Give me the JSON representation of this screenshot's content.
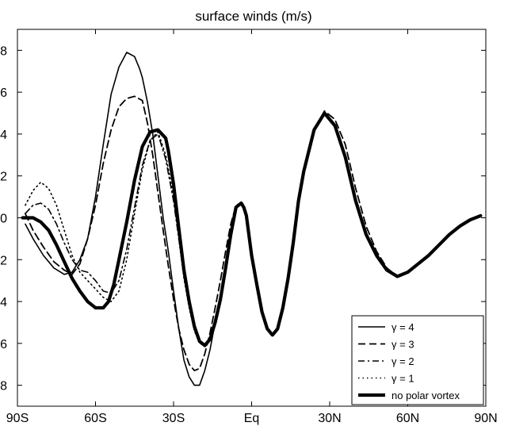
{
  "chart_data": {
    "type": "line",
    "title": "surface winds (m/s)",
    "xlabel": "",
    "ylabel": "",
    "xlim": [
      -90,
      90
    ],
    "ylim": [
      -9,
      9
    ],
    "x_ticks": [
      -90,
      -60,
      -30,
      0,
      30,
      60,
      90
    ],
    "x_tick_labels": [
      "90S",
      "60S",
      "30S",
      "Eq",
      "30N",
      "60N",
      "90N"
    ],
    "y_ticks": [
      8,
      6,
      4,
      2,
      0,
      -2,
      -4,
      -6,
      -8
    ],
    "y_tick_labels": [
      "8",
      "6",
      "4",
      "2",
      "0",
      "2",
      "4",
      "6",
      "8"
    ],
    "grid": false,
    "legend_position": "bottom-right",
    "series": [
      {
        "name": "γ = 4",
        "style": "solid-thin",
        "x": [
          -87,
          -84,
          -80,
          -76,
          -72,
          -69,
          -66,
          -63,
          -60,
          -57,
          -54,
          -51,
          -48,
          -45,
          -43,
          -42,
          -40,
          -38,
          -36,
          -34,
          -32,
          -30,
          -28,
          -26,
          -24,
          -22,
          -20,
          -18,
          -16,
          -14,
          -12,
          -10,
          -8,
          -6,
          -4,
          -3,
          -2,
          0,
          2,
          4,
          6,
          8,
          10,
          12,
          14,
          16,
          18,
          20,
          24,
          28,
          32,
          36,
          40,
          44,
          48,
          52,
          56,
          60,
          64,
          68,
          72,
          76,
          80,
          84,
          88
        ],
        "y": [
          -0.3,
          -1.0,
          -1.8,
          -2.4,
          -2.7,
          -2.6,
          -2.0,
          -1.0,
          1.0,
          3.5,
          5.9,
          7.2,
          7.9,
          7.7,
          7.1,
          6.7,
          5.5,
          4.0,
          2.0,
          0.0,
          -1.6,
          -3.5,
          -5.3,
          -6.8,
          -7.6,
          -8.0,
          -8.0,
          -7.3,
          -6.3,
          -5.0,
          -3.7,
          -2.2,
          -0.7,
          0.5,
          0.7,
          0.5,
          0.1,
          -1.8,
          -3.2,
          -4.5,
          -5.3,
          -5.6,
          -5.3,
          -4.3,
          -2.9,
          -1.2,
          0.8,
          2.2,
          4.2,
          5.0,
          4.4,
          2.9,
          0.8,
          -0.8,
          -1.8,
          -2.5,
          -2.8,
          -2.6,
          -2.2,
          -1.8,
          -1.3,
          -0.8,
          -0.4,
          -0.1,
          0.1
        ]
      },
      {
        "name": "γ = 3",
        "style": "dashed",
        "x": [
          -87,
          -84,
          -80,
          -76,
          -72,
          -69,
          -66,
          -63,
          -60,
          -57,
          -54,
          -51,
          -48,
          -45,
          -42,
          -40,
          -38,
          -36,
          -34,
          -32,
          -30,
          -28,
          -26,
          -24,
          -22,
          -20,
          -18,
          -16,
          -14,
          -12,
          -10,
          -8,
          -6,
          -4,
          -3,
          -2,
          0,
          2,
          4,
          6,
          8,
          10,
          12,
          14,
          16,
          18,
          20,
          24,
          28,
          32,
          36,
          40,
          44,
          48,
          52,
          56,
          60,
          64,
          68,
          72,
          76,
          80,
          84,
          88
        ],
        "y": [
          0.2,
          -0.6,
          -1.4,
          -2.1,
          -2.5,
          -2.7,
          -2.2,
          -1.0,
          0.6,
          2.6,
          4.2,
          5.3,
          5.7,
          5.8,
          5.6,
          4.5,
          3.0,
          1.2,
          -0.6,
          -2.3,
          -3.9,
          -5.3,
          -6.3,
          -7.0,
          -7.3,
          -7.2,
          -6.5,
          -5.5,
          -4.3,
          -3.0,
          -1.6,
          -0.3,
          0.6,
          0.7,
          0.5,
          0.1,
          -1.8,
          -3.2,
          -4.5,
          -5.3,
          -5.6,
          -5.3,
          -4.3,
          -2.9,
          -1.2,
          0.8,
          2.2,
          4.2,
          5.1,
          4.7,
          3.5,
          1.4,
          -0.4,
          -1.6,
          -2.4,
          -2.8,
          -2.6,
          -2.2,
          -1.8,
          -1.3,
          -0.8,
          -0.4,
          -0.1,
          0.1
        ]
      },
      {
        "name": "γ = 2",
        "style": "dash-dot",
        "x": [
          -87,
          -84,
          -81,
          -78,
          -75,
          -72,
          -69,
          -66,
          -63,
          -60,
          -57,
          -54,
          -51,
          -48,
          -45,
          -42,
          -39,
          -36,
          -33,
          -30,
          -28,
          -26,
          -24,
          -22,
          -20,
          -18,
          -16,
          -14,
          -12,
          -10,
          -8,
          -6,
          -4,
          -3,
          -2,
          0,
          2,
          4,
          6,
          8,
          10,
          12,
          14,
          16,
          18,
          20,
          24,
          28,
          32,
          36,
          40,
          44,
          48,
          52,
          56,
          60,
          64,
          68,
          72,
          76,
          80,
          84,
          88
        ],
        "y": [
          0.2,
          0.6,
          0.7,
          0.4,
          -0.3,
          -1.2,
          -2.0,
          -2.5,
          -2.6,
          -3.0,
          -3.5,
          -3.6,
          -3.0,
          -1.5,
          0.5,
          2.5,
          3.7,
          4.0,
          2.8,
          0.8,
          -1.0,
          -2.8,
          -4.2,
          -5.3,
          -5.9,
          -6.1,
          -5.8,
          -5.0,
          -3.9,
          -2.4,
          -0.8,
          0.5,
          0.7,
          0.5,
          0.1,
          -1.8,
          -3.2,
          -4.5,
          -5.3,
          -5.6,
          -5.3,
          -4.3,
          -2.9,
          -1.2,
          0.8,
          2.2,
          4.2,
          5.0,
          4.4,
          2.9,
          0.8,
          -0.8,
          -1.8,
          -2.5,
          -2.8,
          -2.6,
          -2.2,
          -1.8,
          -1.3,
          -0.8,
          -0.4,
          -0.1,
          0.1
        ]
      },
      {
        "name": "γ = 1",
        "style": "dotted",
        "x": [
          -87,
          -84,
          -81,
          -78,
          -75,
          -72,
          -69,
          -66,
          -63,
          -60,
          -57,
          -54,
          -51,
          -48,
          -45,
          -42,
          -39,
          -36,
          -33,
          -30,
          -28,
          -26,
          -24,
          -22,
          -20,
          -18,
          -16,
          -14,
          -12,
          -10,
          -8,
          -6,
          -4,
          -3,
          -2,
          0,
          2,
          4,
          6,
          8,
          10,
          12,
          14,
          16,
          18,
          20,
          24,
          28,
          32,
          36,
          40,
          44,
          48,
          52,
          56,
          60,
          64,
          68,
          72,
          76,
          80,
          84,
          88
        ],
        "y": [
          0.6,
          1.3,
          1.7,
          1.4,
          0.6,
          -0.6,
          -1.8,
          -2.6,
          -3.0,
          -3.4,
          -3.8,
          -4.0,
          -3.5,
          -2.0,
          0.2,
          2.3,
          3.7,
          4.1,
          3.0,
          1.0,
          -1.0,
          -2.9,
          -4.3,
          -5.4,
          -6.0,
          -6.1,
          -5.8,
          -5.0,
          -3.9,
          -2.4,
          -0.8,
          0.5,
          0.7,
          0.5,
          0.1,
          -1.8,
          -3.2,
          -4.5,
          -5.3,
          -5.6,
          -5.3,
          -4.3,
          -2.9,
          -1.2,
          0.8,
          2.2,
          4.2,
          5.0,
          4.4,
          2.9,
          0.8,
          -0.8,
          -1.8,
          -2.5,
          -2.8,
          -2.6,
          -2.2,
          -1.8,
          -1.3,
          -0.8,
          -0.4,
          -0.1,
          0.1
        ]
      },
      {
        "name": "no polar vortex",
        "style": "solid-thick",
        "x": [
          -88,
          -84,
          -81,
          -78,
          -75,
          -72,
          -69,
          -66,
          -63,
          -60,
          -57,
          -55,
          -53,
          -51,
          -48,
          -45,
          -42,
          -39,
          -36,
          -33,
          -32,
          -30,
          -28,
          -26,
          -24,
          -22,
          -20,
          -18,
          -16,
          -14,
          -12,
          -10,
          -8,
          -6,
          -4,
          -3,
          -2,
          0,
          2,
          4,
          6,
          8,
          10,
          12,
          14,
          16,
          18,
          20,
          24,
          28,
          32,
          36,
          40,
          44,
          48,
          52,
          56,
          60,
          64,
          68,
          72,
          76,
          80,
          84,
          88
        ],
        "y": [
          0.0,
          0.0,
          -0.2,
          -0.6,
          -1.3,
          -2.1,
          -2.9,
          -3.5,
          -4.0,
          -4.3,
          -4.3,
          -4.0,
          -3.2,
          -2.0,
          -0.2,
          1.8,
          3.4,
          4.1,
          4.2,
          3.8,
          3.2,
          1.6,
          -0.5,
          -2.5,
          -4.0,
          -5.2,
          -5.9,
          -6.1,
          -5.8,
          -5.0,
          -3.9,
          -2.4,
          -0.8,
          0.5,
          0.7,
          0.5,
          0.1,
          -1.8,
          -3.2,
          -4.5,
          -5.3,
          -5.6,
          -5.3,
          -4.3,
          -2.9,
          -1.2,
          0.8,
          2.2,
          4.2,
          5.0,
          4.4,
          2.9,
          0.8,
          -0.8,
          -1.8,
          -2.5,
          -2.8,
          -2.6,
          -2.2,
          -1.8,
          -1.3,
          -0.8,
          -0.4,
          -0.1,
          0.1
        ]
      }
    ]
  }
}
